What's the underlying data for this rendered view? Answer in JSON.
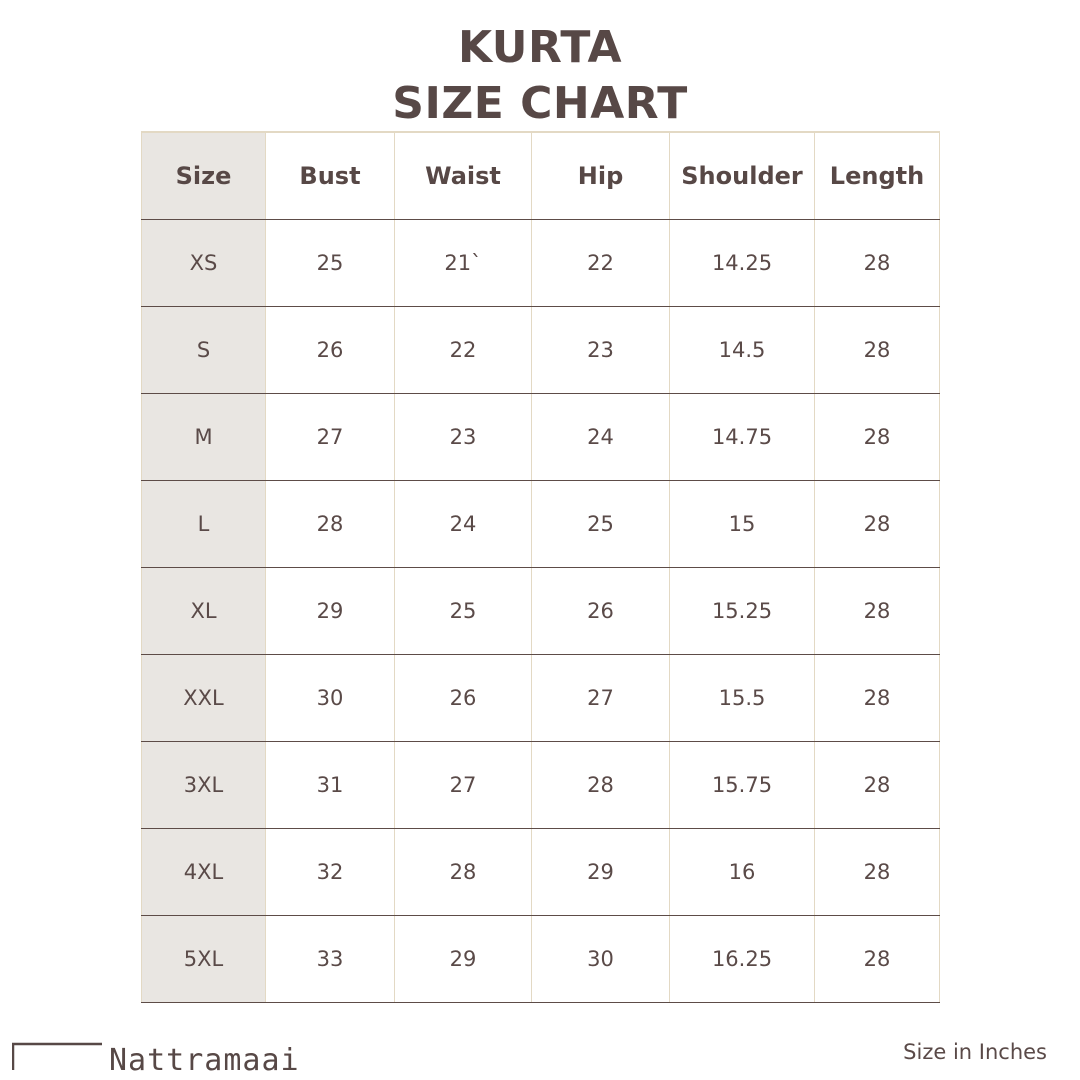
{
  "title": {
    "line1": "KURTA",
    "line2": "SIZE CHART"
  },
  "table": {
    "headers": [
      "Size",
      "Bust",
      "Waist",
      "Hip",
      "Shoulder",
      "Length"
    ],
    "rows": [
      [
        "XS",
        "25",
        "21`",
        "22",
        "14.25",
        "28"
      ],
      [
        "S",
        "26",
        "22",
        "23",
        "14.5",
        "28"
      ],
      [
        "M",
        "27",
        "23",
        "24",
        "14.75",
        "28"
      ],
      [
        "L",
        "28",
        "24",
        "25",
        "15",
        "28"
      ],
      [
        "XL",
        "29",
        "25",
        "26",
        "15.25",
        "28"
      ],
      [
        "XXL",
        "30",
        "26",
        "27",
        "15.5",
        "28"
      ],
      [
        "3XL",
        "31",
        "27",
        "28",
        "15.75",
        "28"
      ],
      [
        "4XL",
        "32",
        "28",
        "29",
        "16",
        "28"
      ],
      [
        "5XL",
        "33",
        "29",
        "30",
        "16.25",
        "28"
      ]
    ]
  },
  "footer": {
    "note": "Size in Inches",
    "logo_text": "Nattramaai"
  },
  "colors": {
    "text": "#584846",
    "size_column_bg": "#e9e6e2",
    "row_divider": "#5d4c47",
    "column_divider": "#e3d9c4"
  }
}
